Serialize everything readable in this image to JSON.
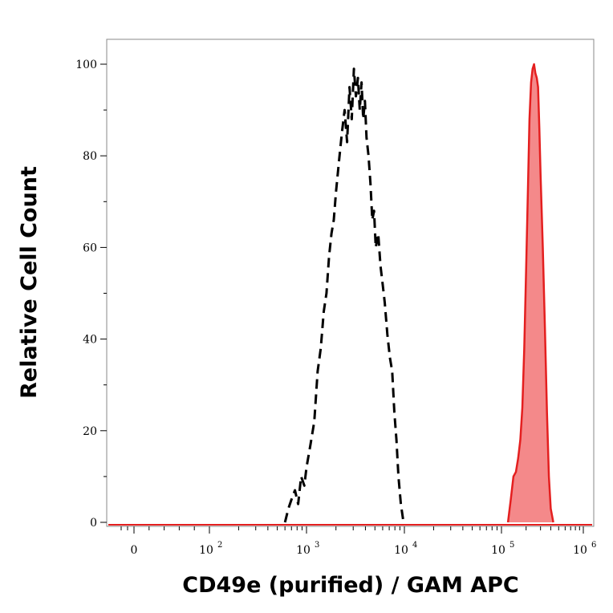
{
  "chart_data": {
    "type": "area",
    "title": "",
    "xlabel": "CD49e (purified) / GAM APC",
    "ylabel": "Relative Cell Count",
    "x_scale": "biexponential",
    "xlim": [
      -100,
      1000000
    ],
    "ylim": [
      0,
      100
    ],
    "y_ticks": [
      0,
      20,
      40,
      60,
      80,
      100
    ],
    "x_ticks": [
      {
        "value": 0,
        "base": "0",
        "exp": ""
      },
      {
        "value": 100,
        "base": "10",
        "exp": "2"
      },
      {
        "value": 1000,
        "base": "10",
        "exp": "3"
      },
      {
        "value": 10000,
        "base": "10",
        "exp": "4"
      },
      {
        "value": 100000,
        "base": "10",
        "exp": "5"
      },
      {
        "value": 1000000,
        "base": "10",
        "exp": "6"
      }
    ],
    "grid": false,
    "legend": "none",
    "series": [
      {
        "style": "dashed",
        "color": "#000000",
        "fill": "none",
        "points": [
          [
            600,
            0
          ],
          [
            650,
            3
          ],
          [
            700,
            5
          ],
          [
            760,
            7
          ],
          [
            820,
            4
          ],
          [
            880,
            10
          ],
          [
            950,
            8
          ],
          [
            1000,
            12
          ],
          [
            1100,
            17
          ],
          [
            1200,
            22
          ],
          [
            1300,
            33
          ],
          [
            1400,
            38
          ],
          [
            1500,
            46
          ],
          [
            1600,
            50
          ],
          [
            1700,
            58
          ],
          [
            1800,
            63
          ],
          [
            1900,
            66
          ],
          [
            2000,
            72
          ],
          [
            2150,
            79
          ],
          [
            2300,
            85
          ],
          [
            2450,
            90
          ],
          [
            2600,
            83
          ],
          [
            2750,
            95
          ],
          [
            2900,
            88
          ],
          [
            3050,
            99
          ],
          [
            3200,
            93
          ],
          [
            3350,
            97
          ],
          [
            3500,
            90
          ],
          [
            3650,
            96
          ],
          [
            3800,
            88
          ],
          [
            3950,
            92
          ],
          [
            4100,
            84
          ],
          [
            4300,
            80
          ],
          [
            4500,
            74
          ],
          [
            4700,
            66
          ],
          [
            4900,
            68
          ],
          [
            5100,
            60
          ],
          [
            5400,
            63
          ],
          [
            5700,
            56
          ],
          [
            6000,
            52
          ],
          [
            6300,
            48
          ],
          [
            6700,
            41
          ],
          [
            7100,
            36
          ],
          [
            7500,
            33
          ],
          [
            7900,
            24
          ],
          [
            8300,
            18
          ],
          [
            8700,
            10
          ],
          [
            9200,
            4
          ],
          [
            9800,
            0
          ]
        ]
      },
      {
        "style": "solid",
        "color": "#e41f1f",
        "fill": "#f4898a",
        "points": [
          [
            120000,
            0
          ],
          [
            130000,
            5
          ],
          [
            140000,
            10
          ],
          [
            150000,
            11
          ],
          [
            160000,
            14
          ],
          [
            170000,
            18
          ],
          [
            180000,
            25
          ],
          [
            190000,
            38
          ],
          [
            200000,
            55
          ],
          [
            210000,
            72
          ],
          [
            220000,
            88
          ],
          [
            230000,
            96
          ],
          [
            240000,
            99
          ],
          [
            250000,
            100
          ],
          [
            260000,
            98
          ],
          [
            270000,
            97
          ],
          [
            280000,
            95
          ],
          [
            290000,
            86
          ],
          [
            300000,
            76
          ],
          [
            320000,
            60
          ],
          [
            340000,
            42
          ],
          [
            360000,
            24
          ],
          [
            380000,
            10
          ],
          [
            400000,
            3
          ],
          [
            430000,
            0
          ]
        ]
      }
    ]
  }
}
